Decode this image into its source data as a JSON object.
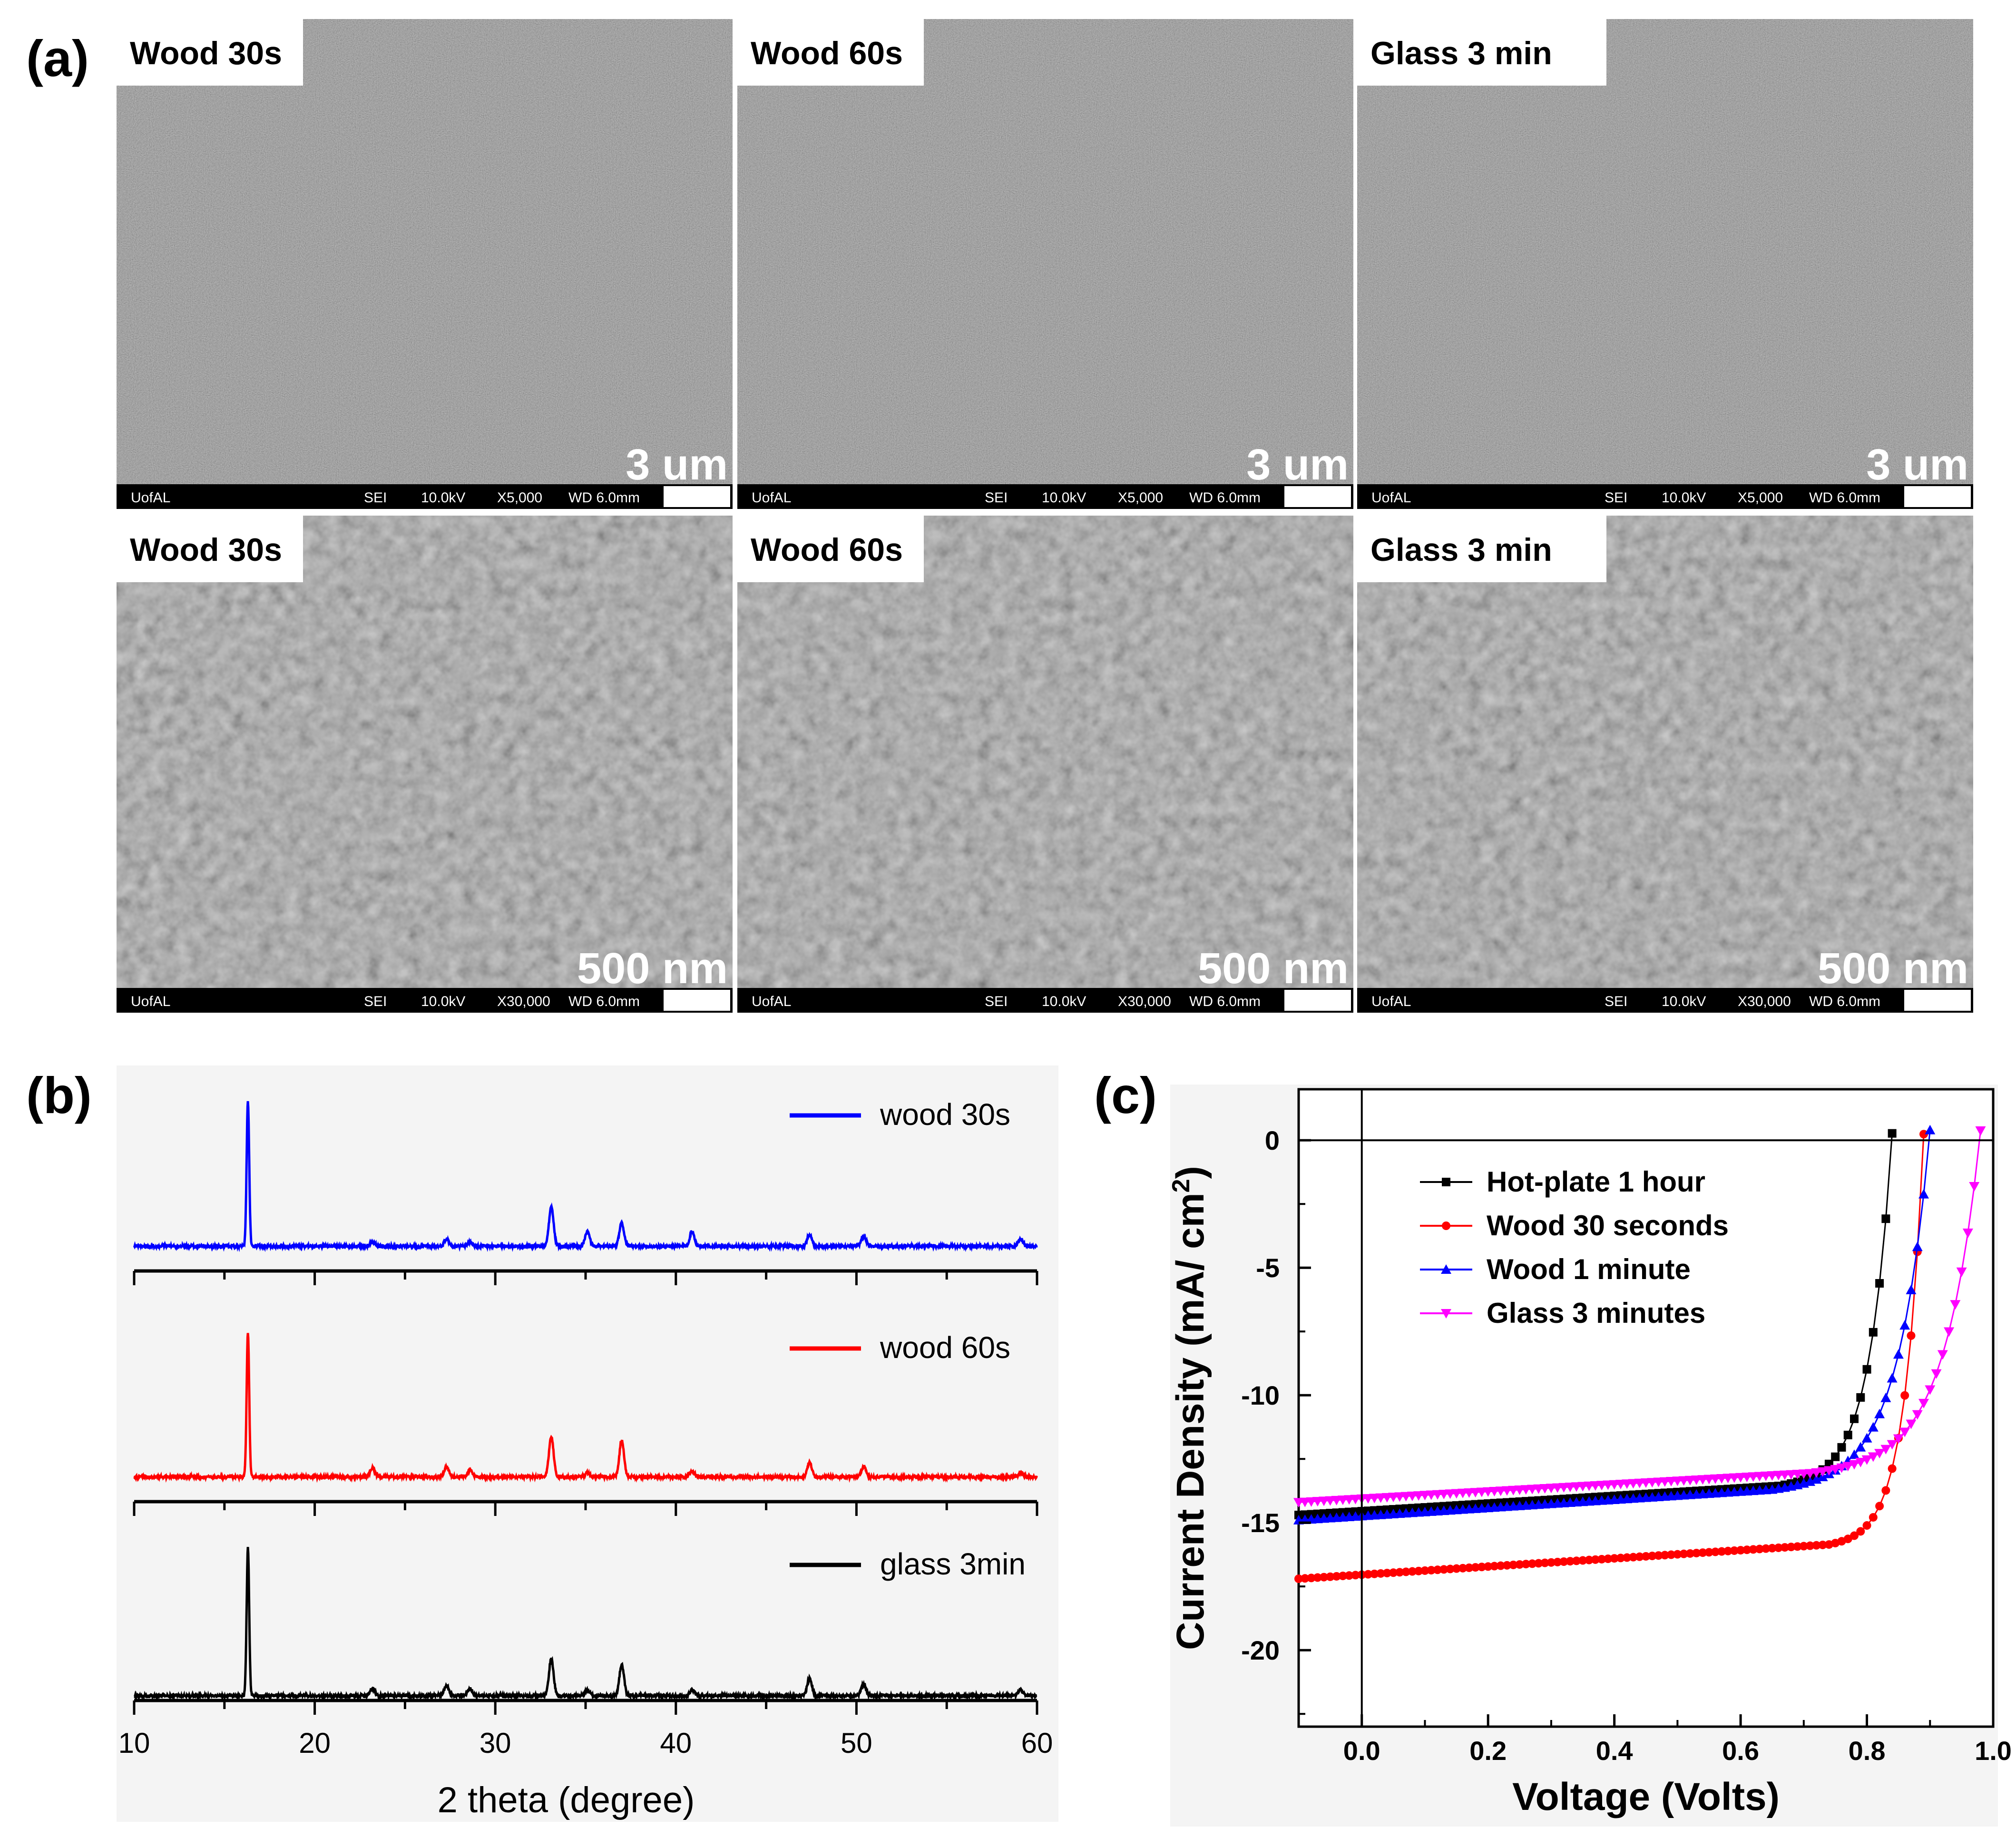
{
  "panels": {
    "a_label": "(a)",
    "b_label": "(b)",
    "c_label": "(c)"
  },
  "sem": {
    "images": [
      {
        "title": "Wood 30s",
        "scale": "3 um",
        "info": {
          "org": "UofAL",
          "mode": "SEI",
          "kv": "10.0kV",
          "mag": "X5,000",
          "wd": "WD 6.0mm"
        }
      },
      {
        "title": "Wood 60s",
        "scale": "3 um",
        "info": {
          "org": "UofAL",
          "mode": "SEI",
          "kv": "10.0kV",
          "mag": "X5,000",
          "wd": "WD 6.0mm"
        }
      },
      {
        "title": "Glass 3 min",
        "scale": "3 um",
        "info": {
          "org": "UofAL",
          "mode": "SEI",
          "kv": "10.0kV",
          "mag": "X5,000",
          "wd": "WD 6.0mm"
        }
      },
      {
        "title": "Wood 30s",
        "scale": "500 nm",
        "info": {
          "org": "UofAL",
          "mode": "SEI",
          "kv": "10.0kV",
          "mag": "X30,000",
          "wd": "WD 6.0mm"
        }
      },
      {
        "title": "Wood 60s",
        "scale": "500 nm",
        "info": {
          "org": "UofAL",
          "mode": "SEI",
          "kv": "10.0kV",
          "mag": "X30,000",
          "wd": "WD 6.0mm"
        }
      },
      {
        "title": "Glass 3 min",
        "scale": "500 nm",
        "info": {
          "org": "UofAL",
          "mode": "SEI",
          "kv": "10.0kV",
          "mag": "X30,000",
          "wd": "WD 6.0mm"
        }
      }
    ]
  },
  "chart_data": [
    {
      "type": "line",
      "title": "",
      "xlabel": "2 theta (degree)",
      "ylabel": "",
      "xlim": [
        10,
        60
      ],
      "xticks": [
        "10",
        "20",
        "30",
        "40",
        "50",
        "60"
      ],
      "peaks_2theta": [
        16.3,
        23.2,
        27.3,
        28.6,
        33.1,
        35.1,
        37.0,
        40.9,
        47.4,
        50.4,
        59.1
      ],
      "series": [
        {
          "name": "wood 30s",
          "color": "#0000ff",
          "peak_intensity": [
            1.0,
            0.03,
            0.05,
            0.03,
            0.27,
            0.1,
            0.16,
            0.1,
            0.08,
            0.07,
            0.05
          ]
        },
        {
          "name": "wood 60s",
          "color": "#ff0000",
          "peak_intensity": [
            1.0,
            0.06,
            0.07,
            0.05,
            0.28,
            0.03,
            0.25,
            0.04,
            0.1,
            0.07,
            0.03
          ]
        },
        {
          "name": "glass 3min",
          "color": "#000000",
          "peak_intensity": [
            1.0,
            0.05,
            0.07,
            0.05,
            0.25,
            0.04,
            0.21,
            0.04,
            0.12,
            0.08,
            0.04
          ]
        }
      ]
    },
    {
      "type": "line",
      "title": "",
      "xlabel": "Voltage (Volts)",
      "ylabel": "Current Density (mA/ cm",
      "ylabel_superscript": "2",
      "ylabel_close": ")",
      "xlim": [
        -0.1,
        1.0
      ],
      "ylim": [
        -23,
        2
      ],
      "xticks": [
        "0.0",
        "0.2",
        "0.4",
        "0.6",
        "0.8",
        "1.0"
      ],
      "yticks": [
        "0",
        "-5",
        "-10",
        "-15",
        "-20"
      ],
      "series": [
        {
          "name": "Hot-plate 1 hour",
          "color": "#000000",
          "marker": "square",
          "jsc": -14.7,
          "voc": 0.84,
          "slope": 1.5,
          "v_knee": 0.66,
          "k": 28
        },
        {
          "name": "Wood 30 seconds",
          "color": "#ff0000",
          "marker": "circle",
          "jsc": -17.2,
          "voc": 0.89,
          "slope": 1.6,
          "v_knee": 0.74,
          "k": 34
        },
        {
          "name": "Wood 1 minute",
          "color": "#0000ff",
          "marker": "triangle-up",
          "jsc": -14.9,
          "voc": 0.9,
          "slope": 1.6,
          "v_knee": 0.65,
          "k": 20
        },
        {
          "name": "Glass 3 minutes",
          "color": "#ff00ff",
          "marker": "triangle-down",
          "jsc": -14.2,
          "voc": 0.98,
          "slope": 1.4,
          "v_knee": 0.71,
          "k": 18
        }
      ]
    }
  ]
}
